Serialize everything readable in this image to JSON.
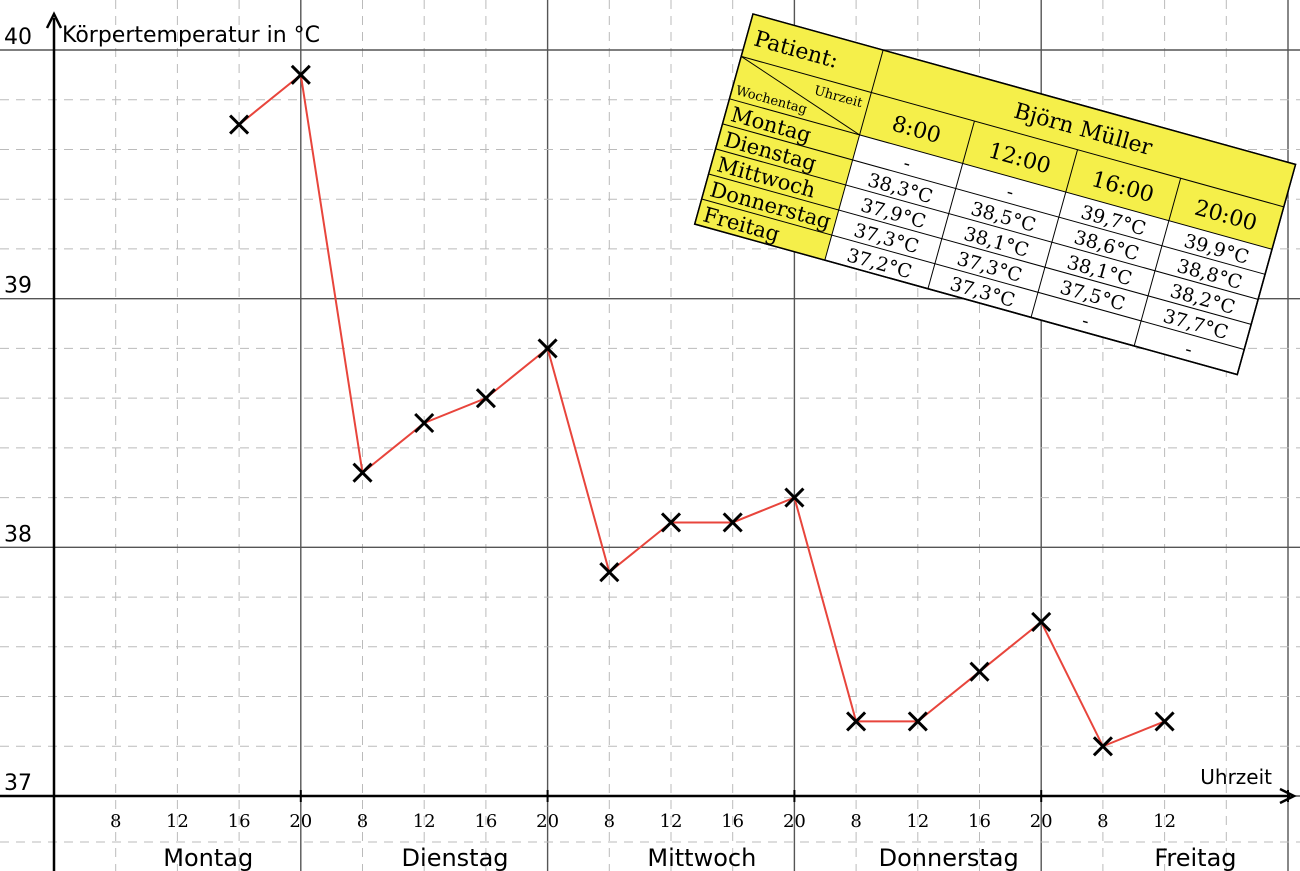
{
  "chart_data": {
    "type": "line",
    "title": "",
    "ylabel": "Körpertemperatur in °C",
    "xlabel": "Uhrzeit",
    "ylim": [
      37,
      40
    ],
    "yticks": [
      {
        "value": 40,
        "label": "40"
      },
      {
        "value": 39,
        "label": "39"
      },
      {
        "value": 38,
        "label": "38"
      },
      {
        "value": 37,
        "label": "37"
      }
    ],
    "days": [
      "Montag",
      "Dienstag",
      "Mittwoch",
      "Donnerstag",
      "Freitag"
    ],
    "hours": [
      "8",
      "12",
      "16",
      "20"
    ],
    "xlim": [
      4,
      24
    ],
    "hour_ticks": [
      {
        "x": 5,
        "label": "8"
      },
      {
        "x": 6,
        "label": "12"
      },
      {
        "x": 7,
        "label": "16"
      },
      {
        "x": 8,
        "label": "20"
      },
      {
        "x": 9,
        "label": "8"
      },
      {
        "x": 10,
        "label": "12"
      },
      {
        "x": 11,
        "label": "16"
      },
      {
        "x": 12,
        "label": "20"
      },
      {
        "x": 13,
        "label": "8"
      },
      {
        "x": 14,
        "label": "12"
      },
      {
        "x": 15,
        "label": "16"
      },
      {
        "x": 16,
        "label": "20"
      },
      {
        "x": 17,
        "label": "8"
      },
      {
        "x": 18,
        "label": "12"
      },
      {
        "x": 19,
        "label": "16"
      },
      {
        "x": 20,
        "label": "20"
      },
      {
        "x": 21,
        "label": "8"
      },
      {
        "x": 22,
        "label": "12"
      }
    ],
    "day_labels": [
      {
        "x": 6.5,
        "label": "Montag"
      },
      {
        "x": 10.5,
        "label": "Dienstag"
      },
      {
        "x": 14.5,
        "label": "Mittwoch"
      },
      {
        "x": 18.5,
        "label": "Donnerstag"
      },
      {
        "x": 22.5,
        "label": "Freitag"
      }
    ],
    "points": [
      {
        "x": 7,
        "y": 39.7
      },
      {
        "x": 8,
        "y": 39.9
      },
      {
        "x": 9,
        "y": 38.3
      },
      {
        "x": 10,
        "y": 38.5
      },
      {
        "x": 11,
        "y": 38.6
      },
      {
        "x": 12,
        "y": 38.8
      },
      {
        "x": 13,
        "y": 37.9
      },
      {
        "x": 14,
        "y": 38.1
      },
      {
        "x": 15,
        "y": 38.1
      },
      {
        "x": 16,
        "y": 38.2
      },
      {
        "x": 17,
        "y": 37.3
      },
      {
        "x": 18,
        "y": 37.3
      },
      {
        "x": 19,
        "y": 37.5
      },
      {
        "x": 20,
        "y": 37.7
      },
      {
        "x": 21,
        "y": 37.2
      },
      {
        "x": 22,
        "y": 37.3
      }
    ],
    "line_color": "#e8453c",
    "marker_color": "#000000",
    "grid": true
  },
  "table": {
    "patient_label": "Patient:",
    "patient_name": "Björn Müller",
    "header_uhrzeit": "Uhrzeit",
    "header_wochentag": "Wochentag",
    "times": [
      "8:00",
      "12:00",
      "16:00",
      "20:00"
    ],
    "rows": [
      {
        "day": "Montag",
        "values": [
          "-",
          "-",
          "39,7°C",
          "39,9°C"
        ]
      },
      {
        "day": "Dienstag",
        "values": [
          "38,3°C",
          "38,5°C",
          "38,6°C",
          "38,8°C"
        ]
      },
      {
        "day": "Mittwoch",
        "values": [
          "37,9°C",
          "38,1°C",
          "38,1°C",
          "38,2°C"
        ]
      },
      {
        "day": "Donnerstag",
        "values": [
          "37,3°C",
          "37,3°C",
          "37,5°C",
          "37,7°C"
        ]
      },
      {
        "day": "Freitag",
        "values": [
          "37,2°C",
          "37,3°C",
          "-",
          "-"
        ]
      }
    ],
    "header_color": "#f5ef4a",
    "cell_color": "#ffffff"
  }
}
